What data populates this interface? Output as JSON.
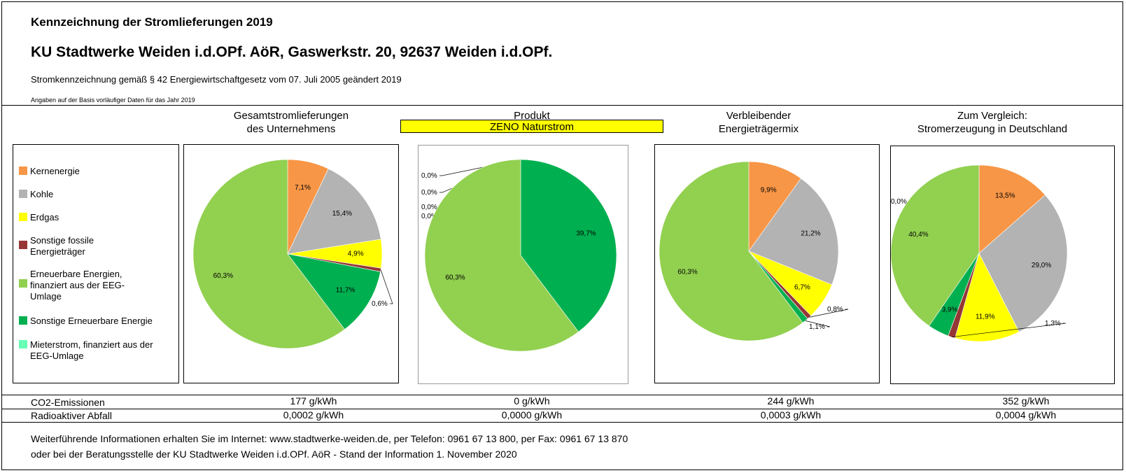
{
  "header": {
    "title": "Kennzeichnung der Stromlieferungen 2019",
    "company": "KU Stadtwerke Weiden i.d.OPf. AöR, Gaswerkstr. 20, 92637 Weiden i.d.OPf.",
    "subtitle": "Stromkennzeichnung gemäß § 42 Energiewirtschaftgesetz vom 07. Juli 2005 geändert 2019",
    "basis_note": "Angaben auf der Basis vorläufiger Daten für das Jahr 2019"
  },
  "columns": {
    "col1": {
      "line1": "Gesamtstromlieferungen",
      "line2": "des Unternehmens"
    },
    "col2": {
      "line1": "Produkt",
      "product_name": "ZENO Naturstrom"
    },
    "col3": {
      "line1": "Verbleibender",
      "line2": "Energieträgermix"
    },
    "col4": {
      "line1": "Zum Vergleich:",
      "line2": "Stromerzeugung in Deutschland"
    }
  },
  "legend": {
    "items": [
      {
        "label": "Kernenergie",
        "color": "#f79646"
      },
      {
        "label": "Kohle",
        "color": "#b3b3b3"
      },
      {
        "label": "Erdgas",
        "color": "#ffff00"
      },
      {
        "label": "Sonstige fossile Energieträger",
        "color": "#953735"
      },
      {
        "label": "Erneuerbare Energien, finanziert aus der EEG-Umlage",
        "color": "#92d050"
      },
      {
        "label": "Sonstige Erneuerbare Energie",
        "color": "#00b050"
      },
      {
        "label": "Mieterstrom, finanziert aus der EEG-Umlage",
        "color": "#66ffb3"
      }
    ]
  },
  "chart_data": [
    {
      "type": "pie",
      "name": "Gesamtstromlieferungen des Unternehmens",
      "categories": [
        "Kernenergie",
        "Kohle",
        "Erdgas",
        "Sonstige fossile Energieträger",
        "Sonstige Erneuerbare Energie",
        "Erneuerbare Energien, finanziert aus der EEG-Umlage"
      ],
      "values": [
        7.1,
        15.4,
        4.9,
        0.6,
        11.7,
        60.3
      ],
      "labels": [
        "7,1%",
        "15,4%",
        "4,9%",
        "0,6%",
        "11,7%",
        "60,3%"
      ],
      "colors": [
        "#f79646",
        "#b3b3b3",
        "#ffff00",
        "#953735",
        "#00b050",
        "#92d050"
      ]
    },
    {
      "type": "pie",
      "name": "ZENO Naturstrom",
      "categories": [
        "Kernenergie",
        "Kohle",
        "Erdgas",
        "Sonstige fossile Energieträger",
        "Sonstige Erneuerbare Energie",
        "Erneuerbare Energien, finanziert aus der EEG-Umlage"
      ],
      "values": [
        0.0,
        0.0,
        0.0,
        0.0,
        39.7,
        60.3
      ],
      "labels": [
        "0,0%",
        "0,0%",
        "0,0%",
        "0,0%",
        "39,7%",
        "60,3%"
      ],
      "colors": [
        "#f79646",
        "#b3b3b3",
        "#ffff00",
        "#953735",
        "#00b050",
        "#92d050"
      ]
    },
    {
      "type": "pie",
      "name": "Verbleibender Energieträgermix",
      "categories": [
        "Kernenergie",
        "Kohle",
        "Erdgas",
        "Sonstige fossile Energieträger",
        "Sonstige Erneuerbare Energie",
        "Erneuerbare Energien, finanziert aus der EEG-Umlage"
      ],
      "values": [
        9.9,
        21.2,
        6.7,
        0.8,
        1.1,
        60.3
      ],
      "labels": [
        "9,9%",
        "21,2%",
        "6,7%",
        "0,8%",
        "1,1%",
        "60,3%"
      ],
      "colors": [
        "#f79646",
        "#b3b3b3",
        "#ffff00",
        "#953735",
        "#00b050",
        "#92d050"
      ]
    },
    {
      "type": "pie",
      "name": "Stromerzeugung in Deutschland",
      "categories": [
        "Mieterstrom, finanziert aus der EEG-Umlage",
        "Kernenergie",
        "Kohle",
        "Erdgas",
        "Sonstige fossile Energieträger",
        "Sonstige Erneuerbare Energie",
        "Erneuerbare Energien, finanziert aus der EEG-Umlage"
      ],
      "values": [
        0.0,
        13.5,
        29.0,
        11.9,
        1.3,
        3.9,
        40.4
      ],
      "labels": [
        "0,0%",
        "13,5%",
        "29,0%",
        "11,9%",
        "1,3%",
        "3,9%",
        "40,4%"
      ],
      "colors": [
        "#66ffb3",
        "#f79646",
        "#b3b3b3",
        "#ffff00",
        "#953735",
        "#00b050",
        "#92d050"
      ]
    }
  ],
  "emissions": {
    "co2_label": "CO2-Emissionen",
    "co2_values": [
      "177 g/kWh",
      "0 g/kWh",
      "244 g/kWh",
      "352 g/kWh"
    ],
    "waste_label": "Radioaktiver Abfall",
    "waste_values": [
      "0,0002 g/kWh",
      "0,0000 g/kWh",
      "0,0003 g/kWh",
      "0,0004 g/kWh"
    ]
  },
  "footer": {
    "line1": "Weiterführende Informationen erhalten Sie im Internet: www.stadtwerke-weiden.de, per Telefon: 0961 67 13 800, per Fax: 0961 67 13 870",
    "line2": "oder bei der Beratungsstelle der KU Stadtwerke Weiden i.d.OPf. AöR - Stand der Information 1. November 2020"
  }
}
